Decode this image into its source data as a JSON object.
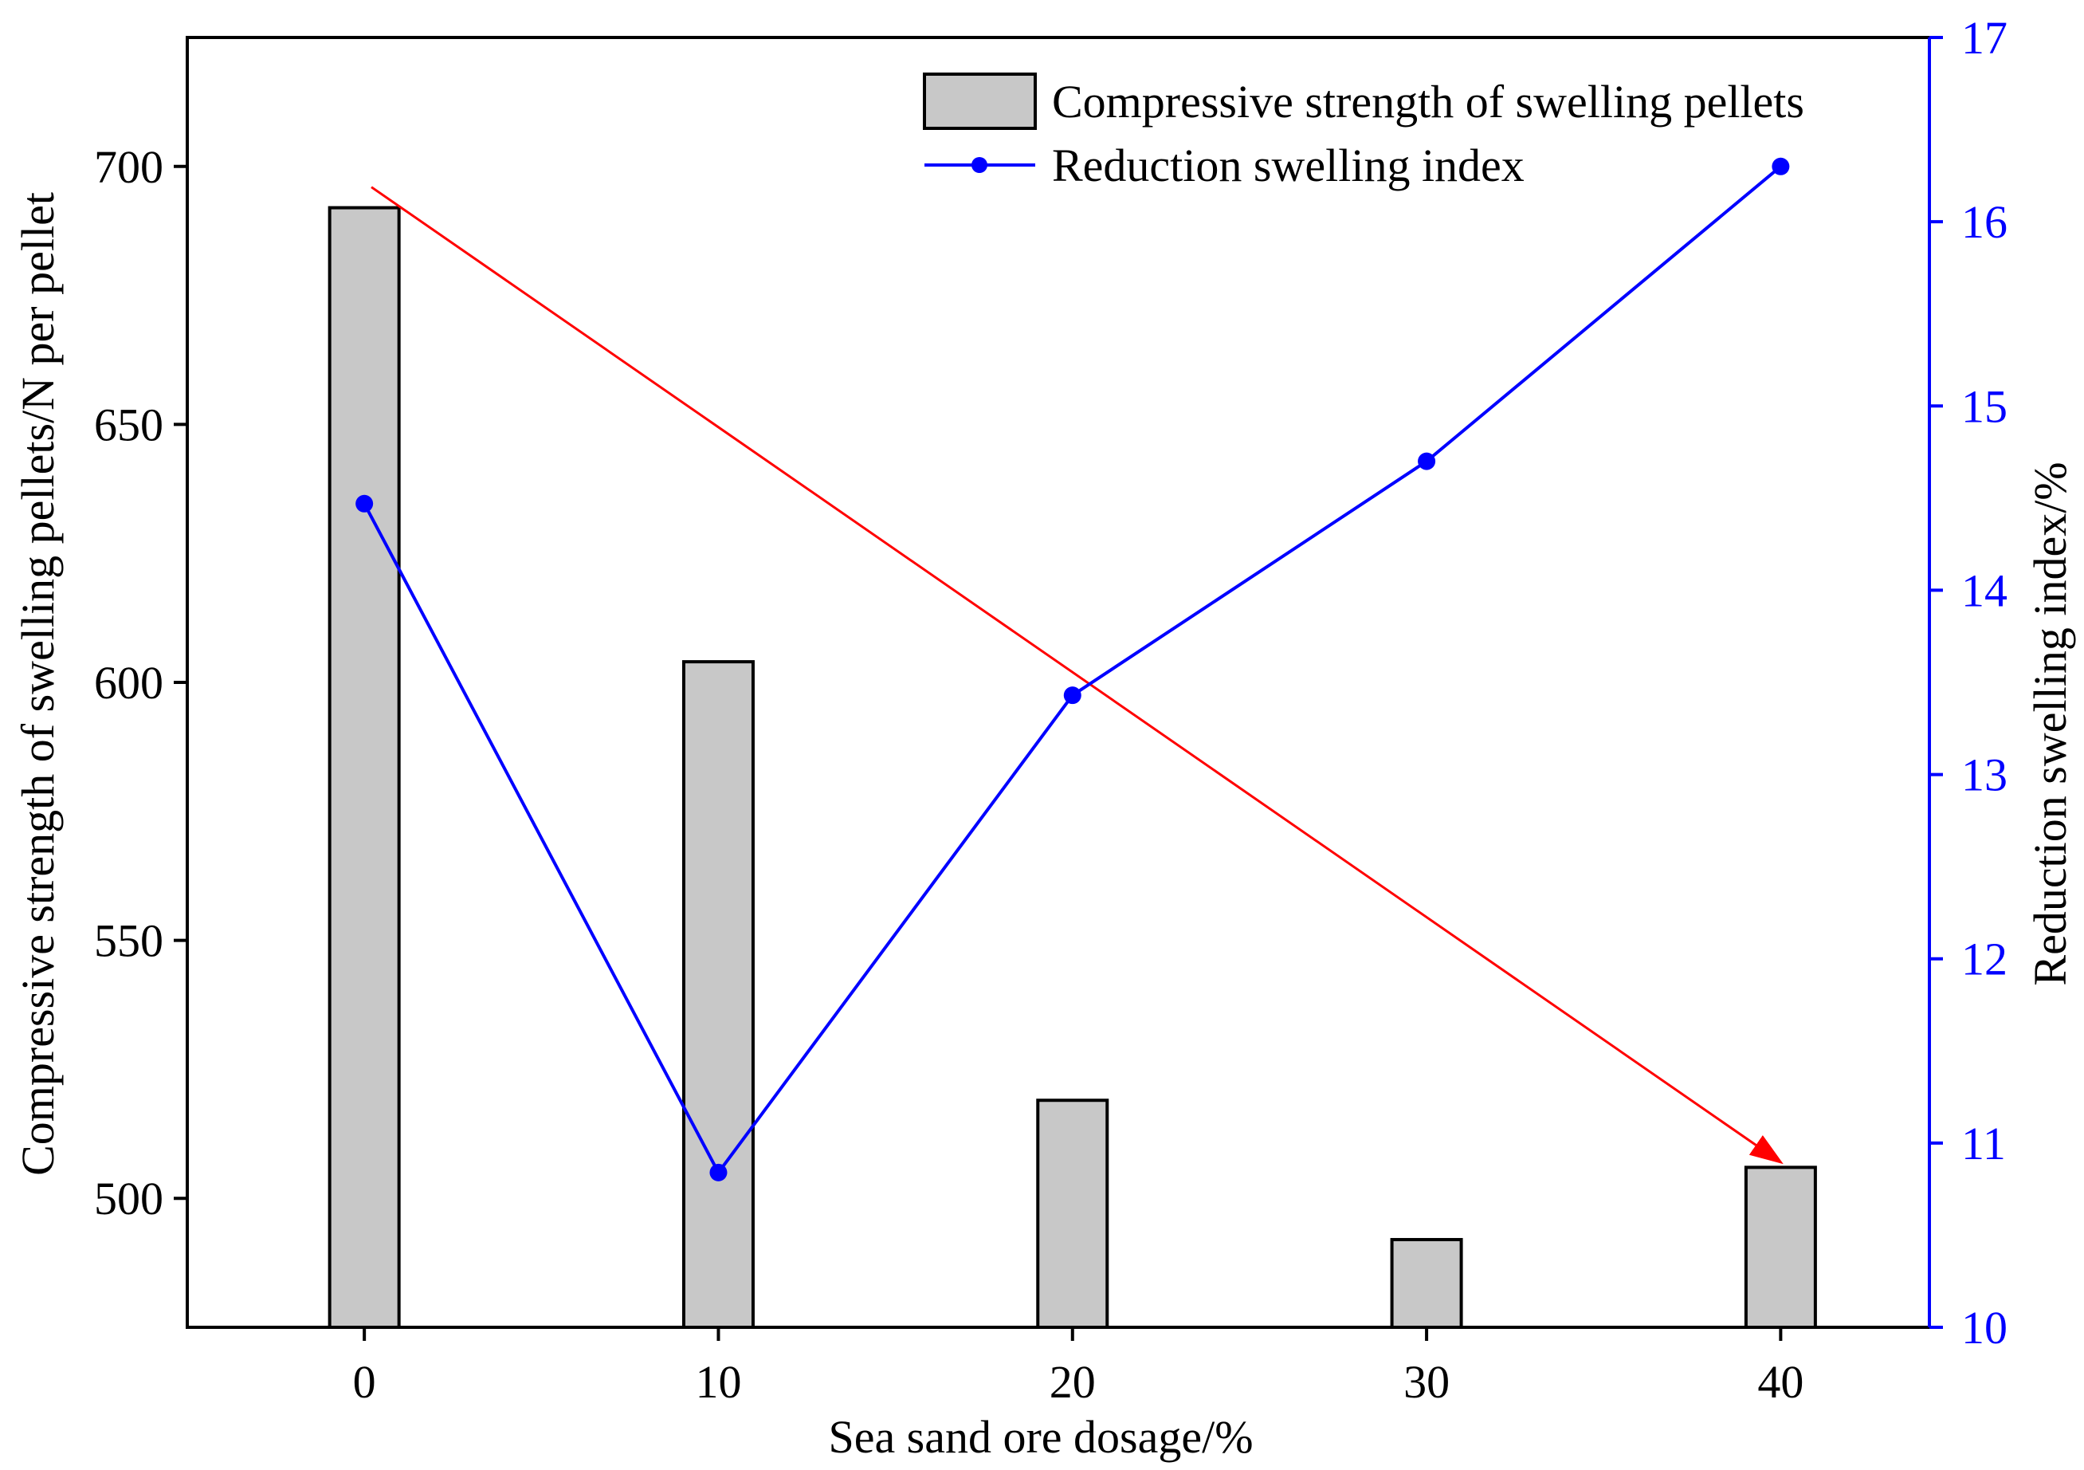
{
  "chart_data": {
    "type": "bar+line",
    "x": [
      0,
      10,
      20,
      30,
      40
    ],
    "x_tick_labels": [
      "0",
      "10",
      "20",
      "30",
      "40"
    ],
    "xlabel": "Sea sand ore dosage/%",
    "xlim": [
      -5,
      44.2
    ],
    "series": [
      {
        "name": "Compressive strength of swelling pellets",
        "type": "bar",
        "axis": "left",
        "values": [
          692,
          604,
          519,
          492,
          506
        ]
      },
      {
        "name": "Reduction swelling index",
        "type": "line",
        "axis": "right",
        "values": [
          14.47,
          10.84,
          13.43,
          14.7,
          16.3
        ]
      }
    ],
    "y_left": {
      "label": "Compressive strength of swelling pellets/N per pellet",
      "ticks": [
        500,
        550,
        600,
        650,
        700
      ],
      "tick_labels": [
        "500",
        "550",
        "600",
        "650",
        "700"
      ],
      "ylim": [
        475,
        725
      ]
    },
    "y_right": {
      "label": "Reduction swelling index/%",
      "ticks": [
        10,
        11,
        12,
        13,
        14,
        15,
        16,
        17
      ],
      "tick_labels": [
        "10",
        "11",
        "12",
        "13",
        "14",
        "15",
        "16",
        "17"
      ],
      "ylim": [
        10,
        17
      ]
    },
    "trend_arrow": {
      "from": {
        "x": 0.2,
        "y": 696
      },
      "to": {
        "x": 40.0,
        "y": 507
      },
      "axis": "left",
      "color": "#ff0000"
    },
    "legend_position": "top-right",
    "colors": {
      "bar_fill": "#c8c8c8",
      "bar_stroke": "#000000",
      "line": "#0000ff",
      "right_axis": "#0000ff",
      "trend": "#ff0000"
    }
  }
}
